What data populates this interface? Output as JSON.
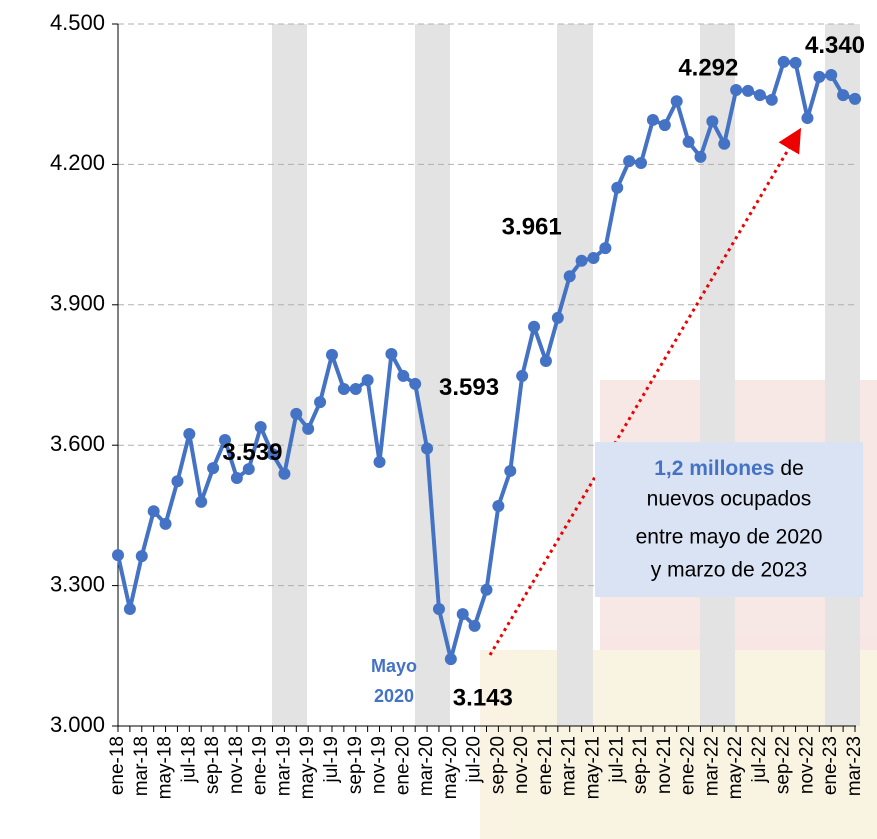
{
  "chart_data": {
    "type": "line",
    "categories": [
      "ene-18",
      null,
      "mar-18",
      null,
      "may-18",
      null,
      "jul-18",
      null,
      "sep-18",
      null,
      "nov-18",
      null,
      "ene-19",
      null,
      "mar-19",
      null,
      "may-19",
      null,
      "jul-19",
      null,
      "sep-19",
      null,
      "nov-19",
      null,
      "ene-20",
      null,
      "mar-20",
      null,
      "may-20",
      null,
      "jul-20",
      null,
      "sep-20",
      null,
      "nov-20",
      null,
      "ene-21",
      null,
      "mar-21",
      null,
      "may-21",
      null,
      "jul-21",
      null,
      "sep-21",
      null,
      "nov-21",
      null,
      "ene-22",
      null,
      "mar-22",
      null,
      "may-22",
      null,
      "jul-22",
      null,
      "sep-22",
      null,
      "nov-22",
      null,
      "ene-23",
      null,
      "mar-23"
    ],
    "series": [
      {
        "color": "#4472c4",
        "values": [
          3365,
          3250,
          3363,
          3459,
          3432,
          3523,
          3624,
          3479,
          3551,
          3611,
          3530,
          3549,
          3639,
          3581,
          3539,
          3667,
          3635,
          3692,
          3793,
          3720,
          3720,
          3739,
          3564,
          3795,
          3748,
          3731,
          3593,
          3250,
          3143,
          3239,
          3214,
          3291,
          3470,
          3545,
          3748,
          3853,
          3780,
          3872,
          3961,
          3994,
          4000,
          4021,
          4150,
          4207,
          4203,
          4295,
          4284,
          4335,
          4248,
          4216,
          4292,
          4244,
          4359,
          4357,
          4348,
          4338,
          4419,
          4417,
          4299,
          4387,
          4391,
          4348,
          4340
        ],
        "value_labels": [
          null,
          null,
          null,
          null,
          null,
          null,
          null,
          null,
          null,
          null,
          null,
          null,
          null,
          null,
          "3.539",
          null,
          null,
          null,
          null,
          null,
          null,
          null,
          null,
          null,
          null,
          null,
          "3.593",
          null,
          "3.143",
          null,
          null,
          null,
          null,
          null,
          null,
          null,
          null,
          null,
          "3.961",
          null,
          null,
          null,
          null,
          null,
          null,
          null,
          null,
          null,
          null,
          null,
          "4.292",
          null,
          null,
          null,
          null,
          null,
          null,
          null,
          null,
          null,
          null,
          null,
          "4.340"
        ]
      }
    ],
    "ylim": [
      3000,
      4500
    ],
    "yticks": [
      {
        "value": 3000,
        "label": "3.000"
      },
      {
        "value": 3300,
        "label": "3.300"
      },
      {
        "value": 3600,
        "label": "3.600"
      },
      {
        "value": 3900,
        "label": "3.900"
      },
      {
        "value": 4200,
        "label": "4.200"
      },
      {
        "value": 4500,
        "label": "4.500"
      }
    ],
    "grid": true,
    "annotations": {
      "marker": [
        "Mayo",
        "2020"
      ],
      "callout": {
        "emphasis": "1,2 millones",
        "lines": [
          "de",
          "nuevos ocupados",
          "entre mayo de 2020",
          "y marzo de 2023"
        ]
      }
    }
  }
}
